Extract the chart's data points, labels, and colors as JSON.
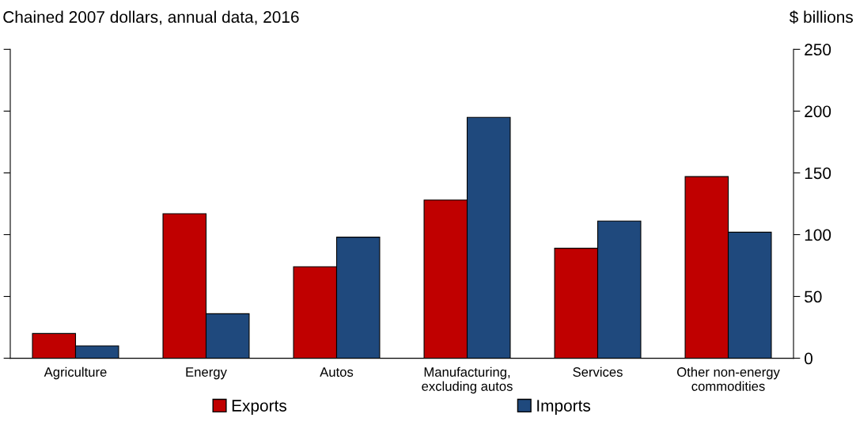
{
  "chart_data": {
    "type": "bar",
    "title": "Chained 2007 dollars, annual data, 2016",
    "ylabel": "$ billions",
    "categories": [
      "Agriculture",
      "Energy",
      "Autos",
      "Manufacturing,\nexcluding autos",
      "Services",
      "Other non-energy\ncommodities"
    ],
    "series": [
      {
        "name": "Exports",
        "color": "#c00000",
        "values": [
          20,
          117,
          74,
          128,
          89,
          147
        ]
      },
      {
        "name": "Imports",
        "color": "#1f497d",
        "values": [
          10,
          36,
          98,
          195,
          111,
          102
        ]
      }
    ],
    "ylim": [
      0,
      250
    ],
    "yticks": [
      0,
      50,
      100,
      150,
      200,
      250
    ],
    "grid": false,
    "legend": "bottom"
  }
}
